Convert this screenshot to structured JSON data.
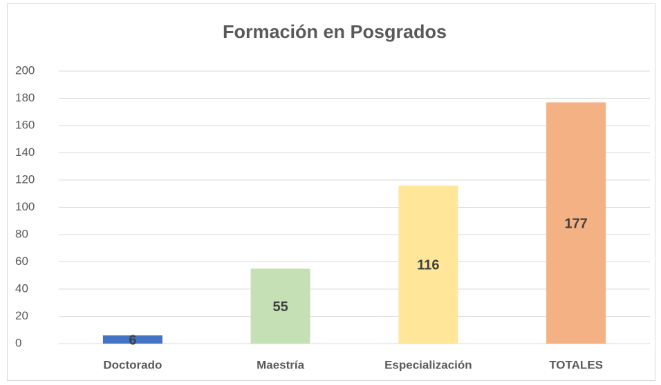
{
  "chart_data": {
    "type": "bar",
    "title": "Formación en Posgrados",
    "categories": [
      "Doctorado",
      "Maestría",
      "Especialización",
      "TOTALES"
    ],
    "values": [
      6,
      55,
      116,
      177
    ],
    "colors": [
      "#4472c4",
      "#c5e0b4",
      "#ffe699",
      "#f4b183"
    ],
    "ylim": [
      0,
      200
    ],
    "yticks": [
      0,
      20,
      40,
      60,
      80,
      100,
      120,
      140,
      160,
      180,
      200
    ],
    "grid": true
  }
}
